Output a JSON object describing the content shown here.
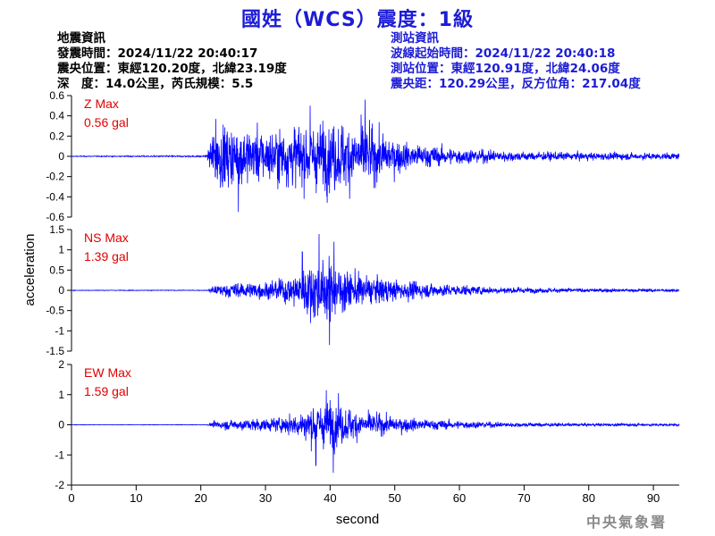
{
  "header": {
    "title": "國姓（WCS）震度：1級"
  },
  "quake_info": {
    "heading": "地震資訊",
    "origin_time": "發震時間：2024/11/22 20:40:17",
    "epicenter": "震央位置：東經120.20度，北緯23.19度",
    "depth_magnitude": "深　度：14.0公里，芮氏規模：5.5"
  },
  "station_info": {
    "heading": "測站資訊",
    "wave_start": "波線起始時間：2024/11/22 20:40:18",
    "station_location": "測站位置：東經120.91度，北緯24.06度",
    "distance_azimuth": "震央距：120.29公里，反方位角：217.04度"
  },
  "watermark": "中央氣象署",
  "colors": {
    "trace": "#0000ff",
    "title": "#1c1cd6",
    "max_label": "#e00000",
    "axis": "#000000"
  },
  "chart_data": {
    "type": "line",
    "xlabel": "second",
    "ylabel": "acceleration",
    "xlim": [
      0,
      94
    ],
    "x_ticks": [
      0,
      10,
      20,
      30,
      40,
      50,
      60,
      70,
      80,
      90
    ],
    "panels": [
      {
        "component": "Z",
        "max_label": "Z Max",
        "max_value": "0.56 gal",
        "ylim": [
          -0.6,
          0.6
        ],
        "y_ticks": [
          -0.6,
          -0.4,
          -0.2,
          0,
          0.2,
          0.4,
          0.6
        ],
        "y_tick_labels": [
          "-0.6",
          "-0.4",
          "-0.2",
          "0",
          "0.2",
          "0.4",
          "0.6"
        ],
        "envelope": [
          [
            0,
            0.005
          ],
          [
            21,
            0.01
          ],
          [
            21.5,
            0.25
          ],
          [
            22.5,
            0.42
          ],
          [
            26,
            0.38
          ],
          [
            30,
            0.33
          ],
          [
            35,
            0.4
          ],
          [
            40,
            0.44
          ],
          [
            45,
            0.42
          ],
          [
            48,
            0.3
          ],
          [
            52,
            0.17
          ],
          [
            60,
            0.1
          ],
          [
            70,
            0.06
          ],
          [
            80,
            0.05
          ],
          [
            94,
            0.04
          ]
        ],
        "peaks": [
          [
            45.4,
            0.56
          ],
          [
            36.9,
            0.5
          ],
          [
            25.8,
            -0.55
          ],
          [
            22.3,
            0.37
          ]
        ]
      },
      {
        "component": "NS",
        "max_label": "NS Max",
        "max_value": "1.39 gal",
        "ylim": [
          -1.5,
          1.5
        ],
        "y_ticks": [
          -1.5,
          -1,
          -0.5,
          0,
          0.5,
          1,
          1.5
        ],
        "y_tick_labels": [
          "-1.5",
          "-1",
          "-0.5",
          "0",
          "0.5",
          "1",
          "1.5"
        ],
        "envelope": [
          [
            0,
            0.01
          ],
          [
            21,
            0.01
          ],
          [
            22,
            0.15
          ],
          [
            25,
            0.25
          ],
          [
            30,
            0.28
          ],
          [
            34,
            0.45
          ],
          [
            36,
            0.75
          ],
          [
            38,
            0.95
          ],
          [
            40,
            0.95
          ],
          [
            42,
            0.75
          ],
          [
            45,
            0.5
          ],
          [
            50,
            0.35
          ],
          [
            56,
            0.22
          ],
          [
            65,
            0.12
          ],
          [
            75,
            0.07
          ],
          [
            94,
            0.04
          ]
        ],
        "peaks": [
          [
            38.3,
            1.39
          ],
          [
            39.9,
            -1.35
          ],
          [
            40.6,
            1.2
          ],
          [
            35.7,
            0.95
          ]
        ]
      },
      {
        "component": "EW",
        "max_label": "EW Max",
        "max_value": "1.59 gal",
        "ylim": [
          -2,
          2
        ],
        "y_ticks": [
          -2,
          -1,
          0,
          1,
          2
        ],
        "y_tick_labels": [
          "-2",
          "-1",
          "0",
          "1",
          "2"
        ],
        "envelope": [
          [
            0,
            0.01
          ],
          [
            21,
            0.01
          ],
          [
            22,
            0.15
          ],
          [
            26,
            0.25
          ],
          [
            32,
            0.3
          ],
          [
            35,
            0.5
          ],
          [
            37,
            0.85
          ],
          [
            40,
            1.0
          ],
          [
            42,
            0.8
          ],
          [
            45,
            0.55
          ],
          [
            50,
            0.35
          ],
          [
            56,
            0.22
          ],
          [
            65,
            0.12
          ],
          [
            75,
            0.07
          ],
          [
            94,
            0.05
          ]
        ],
        "peaks": [
          [
            40.5,
            -1.59
          ],
          [
            39.4,
            1.15
          ],
          [
            37.8,
            -1.35
          ],
          [
            41.3,
            1.05
          ]
        ]
      }
    ]
  }
}
